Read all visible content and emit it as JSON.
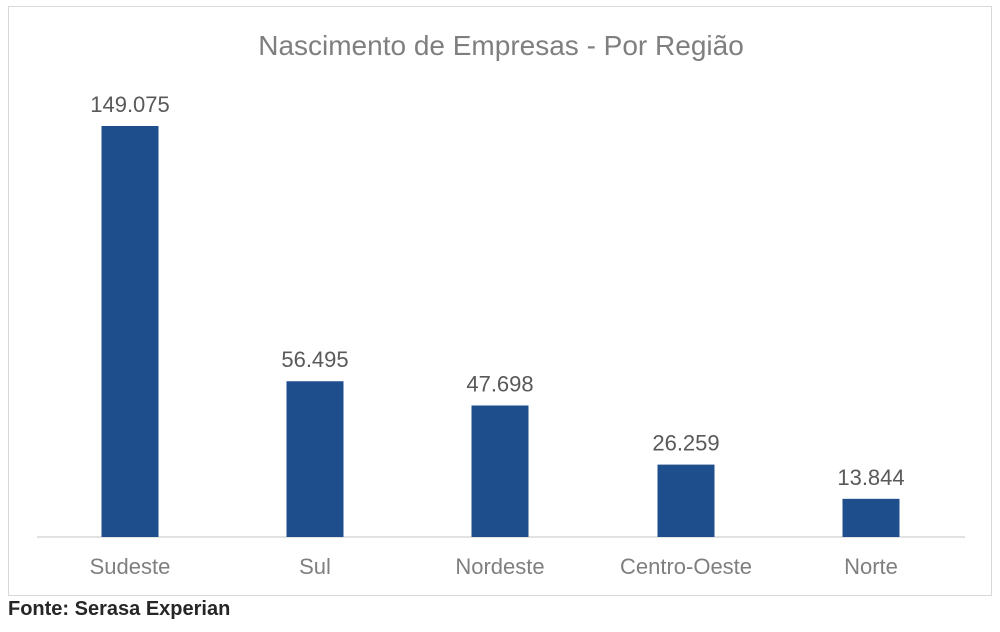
{
  "chart_data": {
    "type": "bar",
    "title": "Nascimento de Empresas - Por Região",
    "categories": [
      "Sudeste",
      "Sul",
      "Nordeste",
      "Centro-Oeste",
      "Norte"
    ],
    "values": [
      149075,
      56495,
      47698,
      26259,
      13844
    ],
    "value_labels": [
      "149.075",
      "56.495",
      "47.698",
      "26.259",
      "13.844"
    ],
    "xlabel": "",
    "ylabel": "",
    "ylim": [
      0,
      149075
    ],
    "grid": false,
    "legend": "none",
    "bar_color": "#1f4e8c"
  },
  "source": "Fonte: Serasa Experian"
}
